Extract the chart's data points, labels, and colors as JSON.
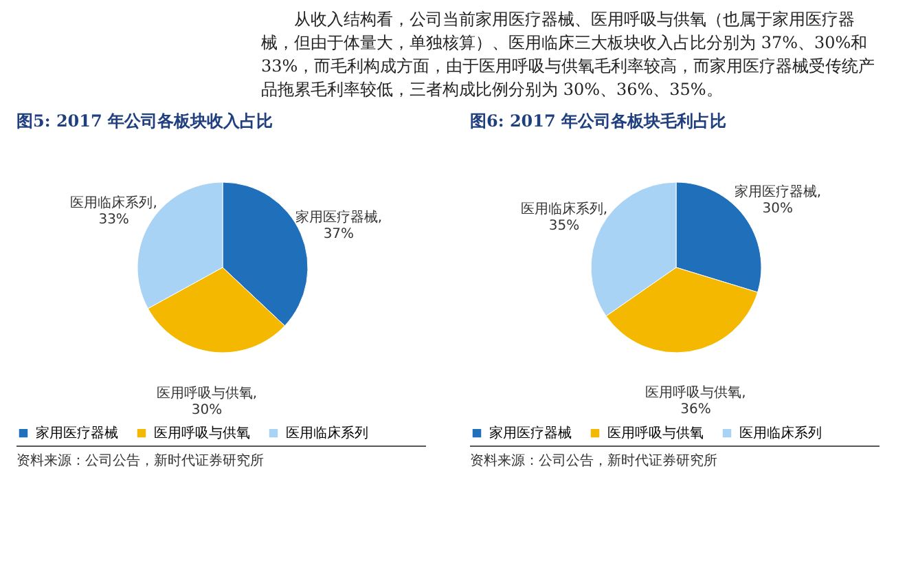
{
  "chart_data": [
    {
      "type": "pie",
      "title": "图5:    2017 年公司各板块收入占比",
      "categories": [
        "家用医疗器械",
        "医用呼吸与供氧",
        "医用临床系列"
      ],
      "values": [
        37,
        30,
        33
      ],
      "colors": [
        "#1f6fba",
        "#f5b800",
        "#a9d3f5"
      ],
      "value_labels": [
        "家用医疗器械, 37%",
        "医用呼吸与供氧, 30%",
        "医用临床系列, 33%"
      ],
      "legend": "bottom",
      "annotations": [
        "从收入结构看，公司当前家用医疗器械、医用呼吸与供氧（也属于家用医疗器械，但由于体量大，单独核算）、医用临床三大板块收入占比分别为 37%、30%和 33%，而毛利构成方面，由于医用呼吸与供氧毛利率较高，而家用医疗器械受传统产品拖累毛利率较低，三者构成比例分别为 30%、36%、35%。",
        "资料来源：公司公告，新时代证券研究所"
      ]
    },
    {
      "type": "pie",
      "title": "图6:    2017 年公司各板块毛利占比",
      "categories": [
        "家用医疗器械",
        "医用呼吸与供氧",
        "医用临床系列"
      ],
      "values": [
        30,
        36,
        35
      ],
      "colors": [
        "#1f6fba",
        "#f5b800",
        "#a9d3f5"
      ],
      "value_labels": [
        "家用医疗器械, 30%",
        "医用呼吸与供氧, 36%",
        "医用临床系列, 35%"
      ],
      "legend": "bottom",
      "annotations": [
        "资料来源：公司公告，新时代证券研究所"
      ]
    }
  ]
}
